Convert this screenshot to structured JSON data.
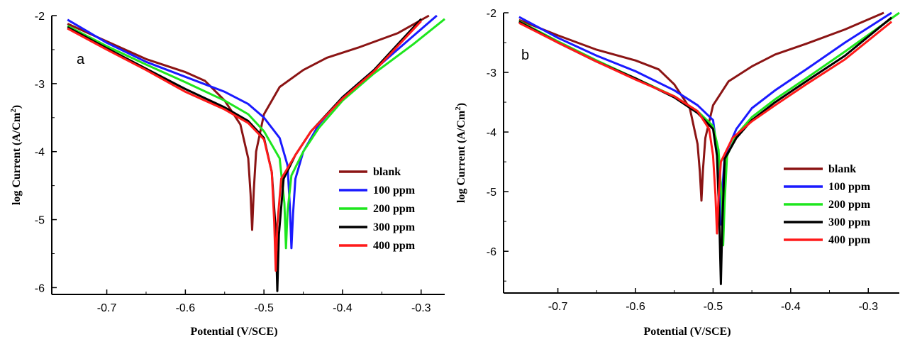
{
  "chart_data": [
    {
      "type": "line",
      "panel_label": "a",
      "xlabel": "Potential (V/SCE)",
      "ylabel": "log Current (A/Cm",
      "ylabel_sup": "2",
      "ylabel_end": ")",
      "xlim": [
        -0.77,
        -0.27
      ],
      "ylim": [
        -6.1,
        -2.0
      ],
      "xticks": [
        "-0.7",
        "-0.6",
        "-0.5",
        "-0.4",
        "-0.3"
      ],
      "yticks": [
        "-2",
        "-3",
        "-4",
        "-5",
        "-6"
      ],
      "legend_position": "lower-right",
      "series": [
        {
          "name": "blank",
          "color": "#8b1414",
          "ecorr": -0.515,
          "min": -5.15,
          "x_start": -0.75,
          "y_start": -2.12,
          "x_end": -0.29,
          "y_end": -2.0,
          "cath": [
            [
              -0.75,
              -2.12
            ],
            [
              -0.7,
              -2.38
            ],
            [
              -0.65,
              -2.64
            ],
            [
              -0.6,
              -2.83
            ],
            [
              -0.575,
              -2.96
            ],
            [
              -0.55,
              -3.25
            ],
            [
              -0.53,
              -3.6
            ],
            [
              -0.52,
              -4.1
            ]
          ],
          "anod": [
            [
              -0.51,
              -4.0
            ],
            [
              -0.5,
              -3.45
            ],
            [
              -0.48,
              -3.05
            ],
            [
              -0.45,
              -2.8
            ],
            [
              -0.42,
              -2.62
            ],
            [
              -0.38,
              -2.47
            ],
            [
              -0.33,
              -2.26
            ],
            [
              -0.29,
              -2.0
            ]
          ]
        },
        {
          "name": "100 ppm",
          "color": "#1a1aff",
          "ecorr": -0.465,
          "min": -5.42,
          "x_start": -0.75,
          "y_start": -2.06,
          "x_end": -0.28,
          "y_end": -2.0,
          "cath": [
            [
              -0.75,
              -2.06
            ],
            [
              -0.7,
              -2.4
            ],
            [
              -0.65,
              -2.68
            ],
            [
              -0.6,
              -2.9
            ],
            [
              -0.55,
              -3.12
            ],
            [
              -0.52,
              -3.3
            ],
            [
              -0.5,
              -3.5
            ],
            [
              -0.48,
              -3.8
            ],
            [
              -0.47,
              -4.2
            ]
          ],
          "anod": [
            [
              -0.46,
              -4.4
            ],
            [
              -0.45,
              -4.0
            ],
            [
              -0.43,
              -3.6
            ],
            [
              -0.4,
              -3.2
            ],
            [
              -0.36,
              -2.8
            ],
            [
              -0.32,
              -2.4
            ],
            [
              -0.28,
              -2.0
            ]
          ]
        },
        {
          "name": "200 ppm",
          "color": "#1ee61e",
          "ecorr": -0.472,
          "min": -5.42,
          "x_start": -0.75,
          "y_start": -2.15,
          "x_end": -0.27,
          "y_end": -2.05,
          "cath": [
            [
              -0.75,
              -2.15
            ],
            [
              -0.7,
              -2.45
            ],
            [
              -0.65,
              -2.72
            ],
            [
              -0.6,
              -2.98
            ],
            [
              -0.55,
              -3.25
            ],
            [
              -0.52,
              -3.45
            ],
            [
              -0.5,
              -3.7
            ],
            [
              -0.48,
              -4.1
            ]
          ],
          "anod": [
            [
              -0.465,
              -4.35
            ],
            [
              -0.45,
              -4.0
            ],
            [
              -0.43,
              -3.65
            ],
            [
              -0.4,
              -3.25
            ],
            [
              -0.36,
              -2.85
            ],
            [
              -0.31,
              -2.42
            ],
            [
              -0.27,
              -2.05
            ]
          ]
        },
        {
          "name": "300 ppm",
          "color": "#000000",
          "ecorr": -0.483,
          "min": -6.05,
          "x_start": -0.75,
          "y_start": -2.17,
          "x_end": -0.3,
          "y_end": -2.05,
          "cath": [
            [
              -0.75,
              -2.17
            ],
            [
              -0.7,
              -2.48
            ],
            [
              -0.65,
              -2.78
            ],
            [
              -0.6,
              -3.08
            ],
            [
              -0.55,
              -3.35
            ],
            [
              -0.52,
              -3.55
            ],
            [
              -0.5,
              -3.8
            ],
            [
              -0.49,
              -4.3
            ]
          ],
          "anod": [
            [
              -0.475,
              -4.4
            ],
            [
              -0.46,
              -4.05
            ],
            [
              -0.44,
              -3.7
            ],
            [
              -0.4,
              -3.2
            ],
            [
              -0.36,
              -2.8
            ],
            [
              -0.3,
              -2.05
            ]
          ]
        },
        {
          "name": "400 ppm",
          "color": "#ff1a1a",
          "ecorr": -0.485,
          "min": -5.75,
          "x_start": -0.75,
          "y_start": -2.19,
          "x_end": -0.3,
          "y_end": -2.08,
          "cath": [
            [
              -0.75,
              -2.19
            ],
            [
              -0.7,
              -2.5
            ],
            [
              -0.65,
              -2.8
            ],
            [
              -0.6,
              -3.12
            ],
            [
              -0.55,
              -3.38
            ],
            [
              -0.52,
              -3.58
            ],
            [
              -0.5,
              -3.82
            ],
            [
              -0.49,
              -4.3
            ]
          ],
          "anod": [
            [
              -0.478,
              -4.4
            ],
            [
              -0.46,
              -4.05
            ],
            [
              -0.44,
              -3.7
            ],
            [
              -0.4,
              -3.22
            ],
            [
              -0.36,
              -2.82
            ],
            [
              -0.3,
              -2.08
            ]
          ]
        }
      ]
    },
    {
      "type": "line",
      "panel_label": "b",
      "xlabel": "Potential (V/SCE)",
      "ylabel": "log Current (A/Cm",
      "ylabel_sup": "2",
      "ylabel_end": ")",
      "xlim": [
        -0.77,
        -0.26
      ],
      "ylim": [
        -6.7,
        -2.0
      ],
      "xticks": [
        "-0.7",
        "-0.6",
        "-0.5",
        "-0.4",
        "-0.3"
      ],
      "yticks": [
        "-2",
        "-3",
        "-4",
        "-5",
        "-6"
      ],
      "legend_position": "lower-right",
      "series": [
        {
          "name": "blank",
          "color": "#8b1414",
          "ecorr": -0.515,
          "min": -5.15,
          "x_start": -0.75,
          "y_start": -2.12,
          "x_end": -0.28,
          "y_end": -2.0,
          "cath": [
            [
              -0.75,
              -2.12
            ],
            [
              -0.7,
              -2.38
            ],
            [
              -0.65,
              -2.62
            ],
            [
              -0.6,
              -2.8
            ],
            [
              -0.57,
              -2.95
            ],
            [
              -0.55,
              -3.2
            ],
            [
              -0.53,
              -3.6
            ],
            [
              -0.52,
              -4.2
            ]
          ],
          "anod": [
            [
              -0.51,
              -4.1
            ],
            [
              -0.5,
              -3.55
            ],
            [
              -0.48,
              -3.15
            ],
            [
              -0.45,
              -2.9
            ],
            [
              -0.42,
              -2.7
            ],
            [
              -0.38,
              -2.52
            ],
            [
              -0.33,
              -2.28
            ],
            [
              -0.28,
              -2.0
            ]
          ]
        },
        {
          "name": "100 ppm",
          "color": "#1a1aff",
          "ecorr": -0.49,
          "min": -5.55,
          "x_start": -0.75,
          "y_start": -2.07,
          "x_end": -0.27,
          "y_end": -2.0,
          "cath": [
            [
              -0.75,
              -2.07
            ],
            [
              -0.7,
              -2.42
            ],
            [
              -0.65,
              -2.72
            ],
            [
              -0.6,
              -2.98
            ],
            [
              -0.55,
              -3.3
            ],
            [
              -0.52,
              -3.55
            ],
            [
              -0.5,
              -3.8
            ],
            [
              -0.495,
              -4.3
            ]
          ],
          "anod": [
            [
              -0.485,
              -4.4
            ],
            [
              -0.47,
              -3.95
            ],
            [
              -0.45,
              -3.6
            ],
            [
              -0.42,
              -3.3
            ],
            [
              -0.38,
              -2.95
            ],
            [
              -0.33,
              -2.5
            ],
            [
              -0.27,
              -2.0
            ]
          ]
        },
        {
          "name": "200 ppm",
          "color": "#1ee61e",
          "ecorr": -0.487,
          "min": -5.9,
          "x_start": -0.75,
          "y_start": -2.14,
          "x_end": -0.26,
          "y_end": -2.0,
          "cath": [
            [
              -0.75,
              -2.14
            ],
            [
              -0.7,
              -2.48
            ],
            [
              -0.65,
              -2.8
            ],
            [
              -0.6,
              -3.1
            ],
            [
              -0.55,
              -3.4
            ],
            [
              -0.52,
              -3.65
            ],
            [
              -0.5,
              -3.9
            ],
            [
              -0.493,
              -4.3
            ]
          ],
          "anod": [
            [
              -0.482,
              -4.4
            ],
            [
              -0.47,
              -4.05
            ],
            [
              -0.45,
              -3.75
            ],
            [
              -0.42,
              -3.45
            ],
            [
              -0.38,
              -3.1
            ],
            [
              -0.33,
              -2.65
            ],
            [
              -0.26,
              -2.0
            ]
          ]
        },
        {
          "name": "300 ppm",
          "color": "#000000",
          "ecorr": -0.49,
          "min": -6.55,
          "x_start": -0.75,
          "y_start": -2.15,
          "x_end": -0.27,
          "y_end": -2.08,
          "cath": [
            [
              -0.75,
              -2.15
            ],
            [
              -0.7,
              -2.5
            ],
            [
              -0.65,
              -2.82
            ],
            [
              -0.6,
              -3.1
            ],
            [
              -0.55,
              -3.42
            ],
            [
              -0.52,
              -3.68
            ],
            [
              -0.5,
              -3.95
            ],
            [
              -0.495,
              -4.4
            ]
          ],
          "anod": [
            [
              -0.485,
              -4.45
            ],
            [
              -0.47,
              -4.1
            ],
            [
              -0.45,
              -3.8
            ],
            [
              -0.42,
              -3.5
            ],
            [
              -0.38,
              -3.15
            ],
            [
              -0.33,
              -2.72
            ],
            [
              -0.27,
              -2.08
            ]
          ]
        },
        {
          "name": "400 ppm",
          "color": "#ff1a1a",
          "ecorr": -0.495,
          "min": -5.7,
          "x_start": -0.75,
          "y_start": -2.17,
          "x_end": -0.27,
          "y_end": -2.15,
          "cath": [
            [
              -0.75,
              -2.17
            ],
            [
              -0.7,
              -2.5
            ],
            [
              -0.65,
              -2.82
            ],
            [
              -0.6,
              -3.12
            ],
            [
              -0.55,
              -3.4
            ],
            [
              -0.52,
              -3.65
            ],
            [
              -0.505,
              -3.95
            ],
            [
              -0.5,
              -4.4
            ]
          ],
          "anod": [
            [
              -0.49,
              -4.5
            ],
            [
              -0.475,
              -4.1
            ],
            [
              -0.45,
              -3.82
            ],
            [
              -0.42,
              -3.55
            ],
            [
              -0.38,
              -3.2
            ],
            [
              -0.33,
              -2.78
            ],
            [
              -0.27,
              -2.15
            ]
          ]
        }
      ]
    }
  ]
}
